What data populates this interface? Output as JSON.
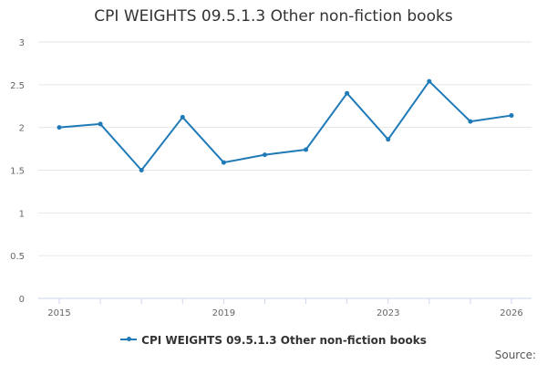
{
  "chart_data": {
    "type": "line",
    "title": "CPI WEIGHTS 09.5.1.3 Other non-fiction books",
    "x": [
      2015,
      2016,
      2017,
      2018,
      2019,
      2020,
      2021,
      2022,
      2023,
      2024,
      2025,
      2026
    ],
    "series": [
      {
        "name": "CPI WEIGHTS 09.5.1.3 Other non-fiction books",
        "values": [
          2.0,
          2.04,
          1.5,
          2.12,
          1.59,
          1.68,
          1.74,
          2.4,
          1.86,
          2.54,
          2.07,
          2.14
        ],
        "color": "#1f7ab8"
      }
    ],
    "xticks": [
      "2015",
      "2019",
      "2023",
      "2026"
    ],
    "yticks": [
      "0",
      "0.5",
      "1",
      "1.5",
      "2",
      "2.5",
      "3"
    ],
    "ylim": [
      0,
      3
    ],
    "xlim": [
      2015,
      2026
    ],
    "grid": true,
    "legend_position": "bottom"
  },
  "source_label": "Source:"
}
